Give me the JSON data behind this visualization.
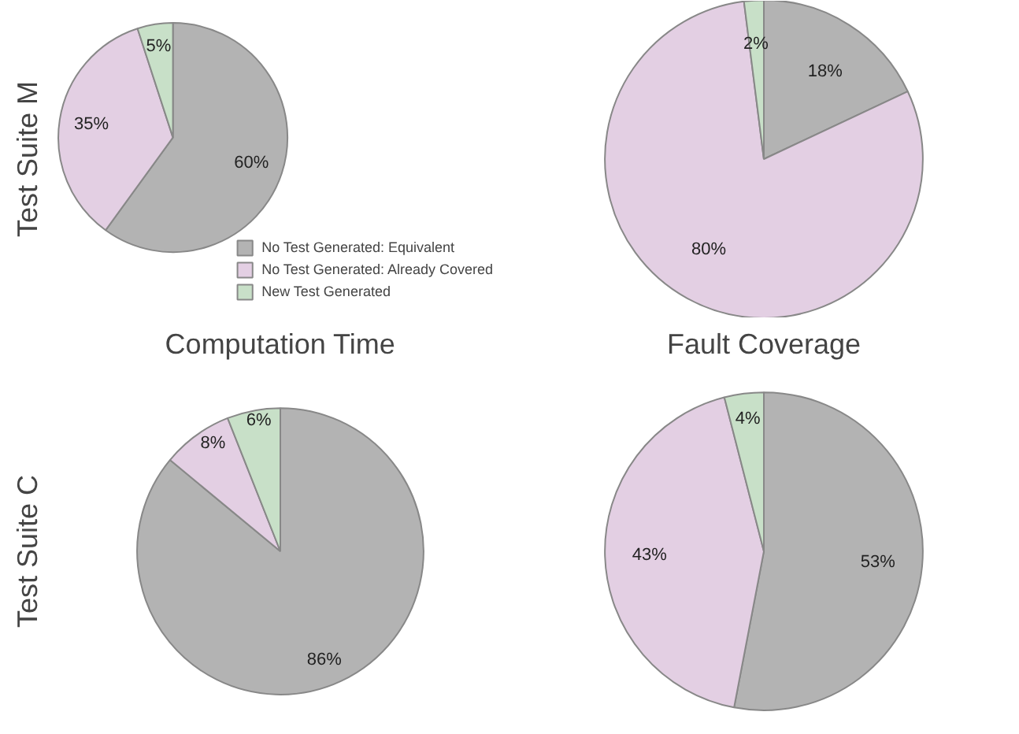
{
  "chart_data": [
    {
      "type": "pie",
      "ylabel": "Test Suite M",
      "xlabel": "Computation Time",
      "categories": [
        "No Test Generated: Equivalent",
        "No Test Generated: Already Covered",
        "New Test Generated"
      ],
      "values": [
        60,
        35,
        5
      ],
      "value_labels": [
        "60%",
        "35%",
        "5%"
      ],
      "colors": [
        "#b3b3b3",
        "#e3cfe3",
        "#c8e0c8"
      ],
      "legend": "bottom right"
    },
    {
      "type": "pie",
      "xlabel": "Fault Coverage",
      "categories": [
        null,
        null,
        null
      ],
      "values": [
        18,
        80,
        2
      ],
      "value_labels": [
        "18%",
        "80%",
        "2%"
      ],
      "colors": [
        "#b3b3b3",
        "#e3cfe3",
        "#c8e0c8"
      ]
    },
    {
      "type": "pie",
      "ylabel": "Test Suite C",
      "categories": [
        null,
        null,
        null
      ],
      "values": [
        86,
        8,
        6
      ],
      "value_labels": [
        "86%",
        "8%",
        "6%"
      ],
      "colors": [
        "#b3b3b3",
        "#e3cfe3",
        "#c8e0c8"
      ]
    },
    {
      "type": "pie",
      "categories": [
        null,
        null,
        null
      ],
      "values": [
        53,
        43,
        4
      ],
      "value_labels": [
        "53%",
        "43%",
        "4%"
      ],
      "colors": [
        "#b3b3b3",
        "#e3cfe3",
        "#c8e0c8"
      ]
    }
  ]
}
